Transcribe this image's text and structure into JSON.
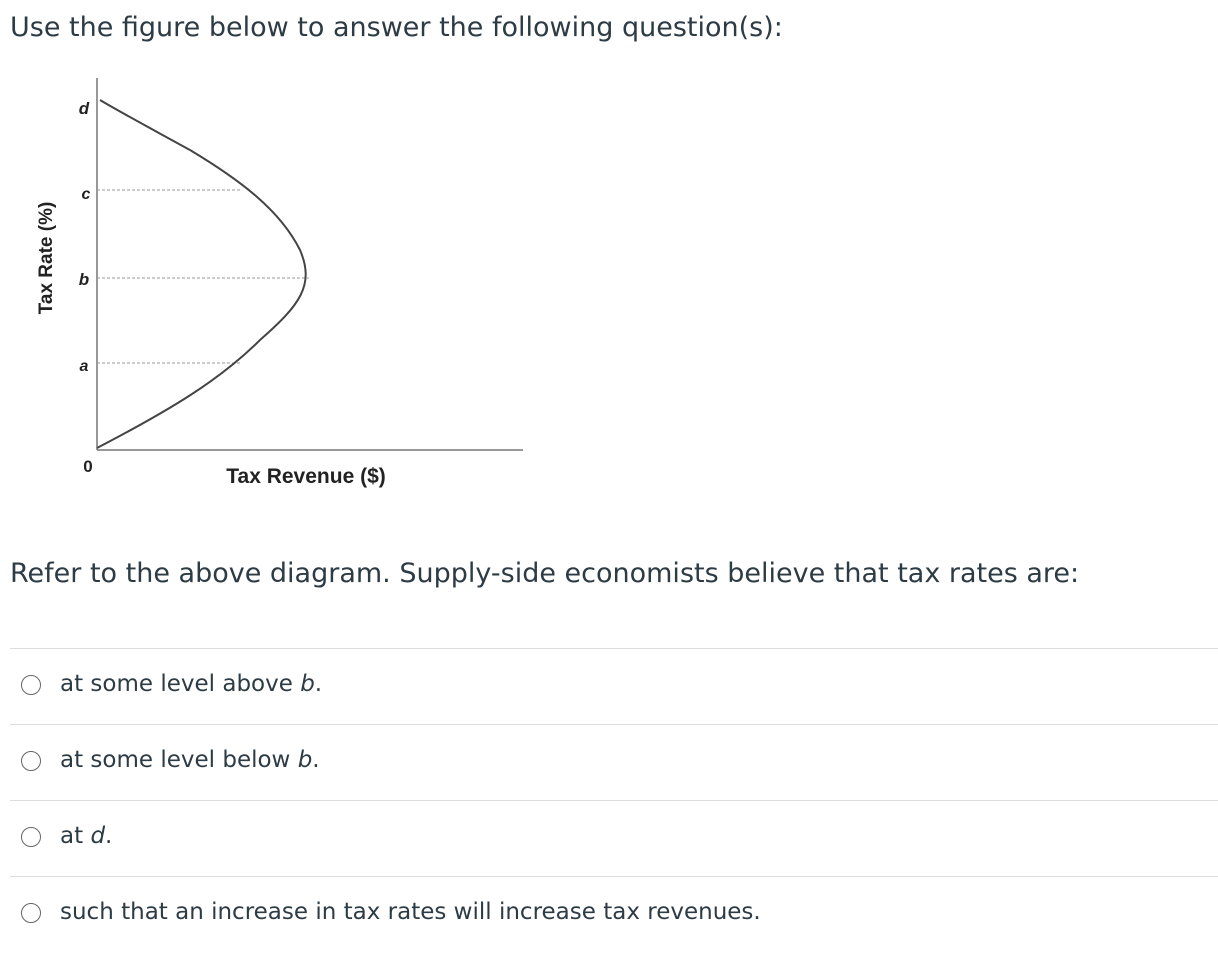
{
  "intro": "Use the figure below to answer the following question(s):",
  "figure": {
    "y_axis_label": "Tax Rate (%)",
    "x_axis_label": "Tax Revenue ($)",
    "y_labels": [
      "d",
      "c",
      "b",
      "a"
    ],
    "origin_label": "0"
  },
  "question": "Refer to the above diagram. Supply-side economists believe that tax rates are:",
  "options": [
    {
      "text": "at some level above ",
      "em": "b",
      "end": "."
    },
    {
      "text": "at some level below ",
      "em": "b",
      "end": "."
    },
    {
      "text": "at ",
      "em": "d",
      "end": "."
    },
    {
      "text": "such that an increase in tax rates will increase tax revenues."
    }
  ]
}
